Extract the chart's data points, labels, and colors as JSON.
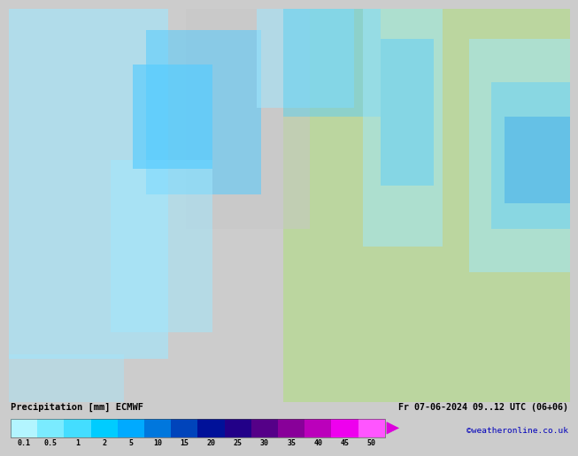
{
  "title_left": "Precipitation [mm] ECMWF",
  "title_right": "Fr 07-06-2024 09..12 UTC (06+06)",
  "copyright": "©weatheronline.co.uk",
  "colorbar_values": [
    "0.1",
    "0.5",
    "1",
    "2",
    "5",
    "10",
    "15",
    "20",
    "25",
    "30",
    "35",
    "40",
    "45",
    "50"
  ],
  "colorbar_colors": [
    "#b3f5ff",
    "#7aebff",
    "#44ddff",
    "#00ccff",
    "#00aaff",
    "#0077dd",
    "#0044bb",
    "#001199",
    "#220088",
    "#550088",
    "#880099",
    "#bb00bb",
    "#ee00ee",
    "#ff55ff"
  ],
  "bg_color": "#cccccc",
  "bottom_bg": "#ffffff",
  "font_color": "#000000",
  "copyright_color": "#0000bb",
  "arrow_color": "#dd00dd",
  "map_sea_color": "#c8c8c8",
  "map_land_green": "#b8d898",
  "map_land_gray": "#c8c8c8",
  "map_precip_light": "#a0e8ff",
  "map_precip_mid": "#55ccff",
  "map_precip_dark": "#2299ee",
  "map_precip_deeper": "#0055cc"
}
